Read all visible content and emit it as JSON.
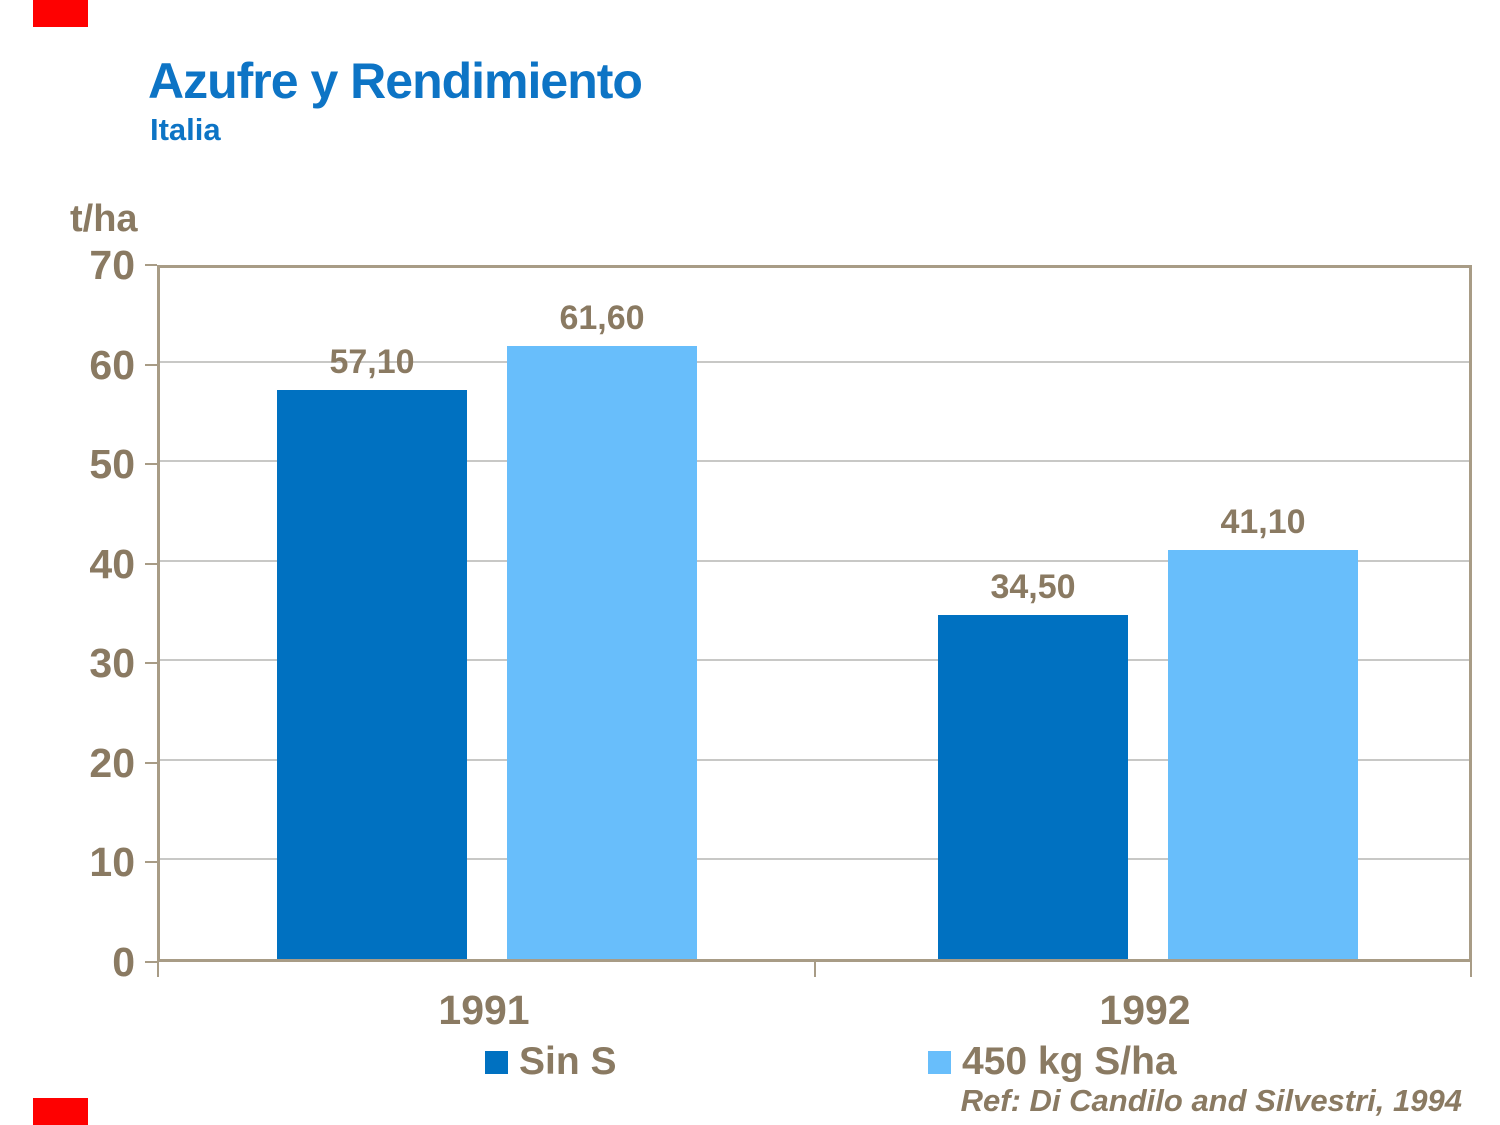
{
  "page": {
    "title": "Azufre y Rendimiento",
    "subtitle": "Italia",
    "y_axis_unit": "t/ha",
    "ref_text": "Ref: Di Candilo and Silvestri, 1994"
  },
  "colors": {
    "accent_red": "#fe0101",
    "title_blue": "#0d74c5",
    "text_brown": "#8a7a62",
    "frame_tan": "#a89c86",
    "gridline_gray": "#c8c8c6",
    "series_dark_blue": "#0071c1",
    "series_light_blue": "#68befb"
  },
  "chart_data": {
    "type": "bar",
    "title": "Azufre y Rendimiento",
    "subtitle": "Italia",
    "ylabel": "t/ha",
    "xlabel": "",
    "ylim": [
      0,
      70
    ],
    "ytick_step": 10,
    "ytick_labels": [
      "0",
      "10",
      "20",
      "30",
      "40",
      "50",
      "60",
      "70"
    ],
    "grid": true,
    "legend_position": "bottom",
    "categories": [
      "1991",
      "1992"
    ],
    "series": [
      {
        "name": "Sin S",
        "color": "#0071c1",
        "values": [
          57.1,
          34.5
        ],
        "labels": [
          "57,10",
          "34,50"
        ]
      },
      {
        "name": "450 kg S/ha",
        "color": "#68befb",
        "values": [
          61.6,
          41.1
        ],
        "labels": [
          "61,60",
          "41,10"
        ]
      }
    ],
    "annotation": "Ref: Di Candilo and Silvestri, 1994"
  },
  "legend": {
    "items": [
      {
        "label": "Sin S",
        "color": "#0071c1"
      },
      {
        "label": "450 kg S/ha",
        "color": "#68befb"
      }
    ]
  }
}
